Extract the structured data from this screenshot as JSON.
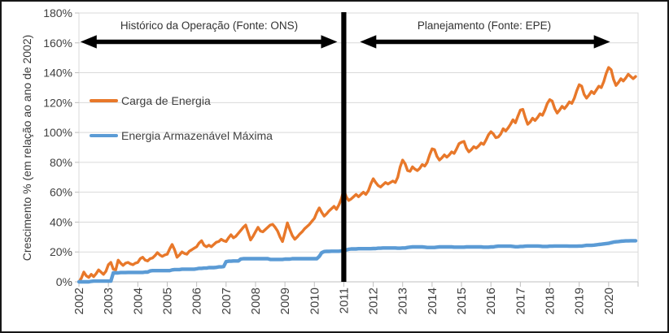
{
  "chart_data": {
    "type": "line",
    "title": "",
    "xlabel": "",
    "ylabel": "Crescimento % (em relação ao ano de 2002)",
    "x_unit": "monthly points from Jan 2002 to Dec 2020",
    "x_tick_labels": [
      "2002",
      "2003",
      "2004",
      "2005",
      "2006",
      "2007",
      "2008",
      "2009",
      "2010",
      "2011",
      "2012",
      "2013",
      "2014",
      "2015",
      "2016",
      "2017",
      "2018",
      "2019",
      "2020"
    ],
    "y_tick_labels": [
      "0%",
      "20%",
      "40%",
      "60%",
      "80%",
      "100%",
      "120%",
      "140%",
      "160%",
      "180%"
    ],
    "y_ticks_pct": [
      0,
      20,
      40,
      60,
      80,
      100,
      120,
      140,
      160,
      180
    ],
    "ylim": [
      0,
      180
    ],
    "xlim_years": [
      2002,
      2021
    ],
    "grid": "horizontal",
    "grid_color": "#d9d9d9",
    "axis_color": "#bfbfbf",
    "divider": {
      "x_year": 2011,
      "color": "#000000"
    },
    "annotations": [
      {
        "label": "Histórico da Operação (Fonte: ONS)",
        "arrow_span_years": [
          2002.05,
          2010.78
        ],
        "y_pct": 160
      },
      {
        "label": "Planejamento (Fonte: EPE)",
        "arrow_span_years": [
          2011.55,
          2020.05
        ],
        "y_pct": 160
      }
    ],
    "legend": [
      {
        "name": "Carga de Energia",
        "color": "#e8782a"
      },
      {
        "name": "Energia Armazenável Máxima",
        "color": "#5b9bd5"
      }
    ],
    "series": [
      {
        "name": "Carga de Energia",
        "color": "#e8782a",
        "width": 3.4,
        "values": [
          0,
          2.5,
          6.5,
          4,
          3,
          5,
          3.5,
          5.5,
          8,
          6.5,
          5,
          7,
          11.5,
          13,
          8.5,
          8,
          14.5,
          12.5,
          11,
          12.5,
          13,
          12,
          11.5,
          12.5,
          13,
          15.5,
          16.5,
          14.5,
          14,
          15.5,
          16,
          17.5,
          19.5,
          18,
          17,
          18,
          18.5,
          22,
          25,
          21.5,
          16.5,
          18,
          20,
          19,
          18.5,
          20.5,
          21.5,
          22.5,
          23.5,
          26,
          27.5,
          24.5,
          23.5,
          24.5,
          23.5,
          25,
          26.5,
          27,
          28.5,
          27.5,
          27,
          29.5,
          31.5,
          29.5,
          30.5,
          32.5,
          34.5,
          36.5,
          38,
          33,
          28,
          30.5,
          33.5,
          36.5,
          34,
          33.5,
          35,
          36.5,
          38,
          38.5,
          36.5,
          34,
          30,
          27,
          33,
          39.5,
          35,
          31,
          28.5,
          30,
          32,
          33.5,
          35.5,
          37,
          38.5,
          40.5,
          42.5,
          46.5,
          49.5,
          46.5,
          44,
          45.5,
          47.5,
          49,
          50.5,
          48.5,
          51.5,
          55.5,
          61.5,
          57,
          54.5,
          55.5,
          57,
          58.5,
          57,
          58.5,
          60,
          58.5,
          61,
          65.5,
          69,
          66.5,
          64.5,
          63.5,
          65,
          66.5,
          65.5,
          66.5,
          67.5,
          66.5,
          70,
          77,
          81.5,
          79,
          74.5,
          74,
          77,
          75.5,
          74.5,
          76,
          78.5,
          77.5,
          80,
          85,
          89,
          88.5,
          84,
          81.5,
          83,
          85,
          83.5,
          85,
          87,
          86,
          89,
          92.5,
          93.5,
          94,
          89.5,
          87,
          88.5,
          90.5,
          89.5,
          91,
          93,
          92,
          95,
          98.5,
          100.5,
          99,
          96.5,
          97,
          99,
          102.5,
          101,
          103,
          105.5,
          108.5,
          106.5,
          111,
          115,
          115.5,
          110,
          105.5,
          107,
          109.5,
          108,
          110,
          112.5,
          111.5,
          115,
          119.5,
          122,
          121,
          116,
          113,
          115,
          117.5,
          116,
          118,
          120.5,
          119.5,
          123,
          128,
          132,
          131,
          125.5,
          123,
          125,
          127.5,
          126,
          128.5,
          131,
          130,
          134,
          139.5,
          143.5,
          142,
          135.5,
          131.5,
          133.5,
          136,
          134.5,
          136.5,
          139,
          137.5,
          136,
          137.5
        ]
      },
      {
        "name": "Energia Armazenável Máxima",
        "color": "#5b9bd5",
        "width": 4.4,
        "values": [
          0,
          0,
          0,
          0,
          0,
          0.3,
          0.5,
          0.5,
          0.5,
          0.5,
          0.5,
          0.5,
          0.5,
          0.5,
          6,
          6,
          6,
          6.2,
          6.2,
          6.2,
          6.3,
          6.3,
          6.3,
          6.3,
          6.3,
          6.3,
          6.3,
          6.5,
          6.5,
          7.3,
          7.5,
          7.5,
          7.5,
          7.5,
          7.5,
          7.5,
          7.5,
          7.5,
          8,
          8.2,
          8.2,
          8.2,
          8.5,
          8.5,
          8.5,
          8.5,
          8.5,
          8.5,
          8.7,
          9,
          9,
          9.2,
          9.2,
          9.5,
          9.5,
          9.5,
          9.7,
          10,
          10,
          10.2,
          13.5,
          13.8,
          13.8,
          14,
          14,
          14,
          15.3,
          15.5,
          15.5,
          15.5,
          15.5,
          15.5,
          15.5,
          15.5,
          15.5,
          15.5,
          15.5,
          15.5,
          15,
          15,
          15,
          15,
          15,
          15,
          15.2,
          15.2,
          15.2,
          15.5,
          15.5,
          15.5,
          15.5,
          15.5,
          15.5,
          15.5,
          15.5,
          15.5,
          15.5,
          15.5,
          17,
          19.5,
          20.3,
          20.4,
          20.4,
          20.5,
          20.5,
          20.5,
          20.5,
          20.7,
          21,
          21.3,
          21.8,
          22,
          22,
          22,
          22.2,
          22.2,
          22.2,
          22.2,
          22.2,
          22.2,
          22.3,
          22.3,
          22.5,
          22.5,
          22.7,
          22.7,
          22.7,
          22.7,
          22.7,
          22.7,
          22.5,
          22.5,
          22.7,
          22.7,
          23,
          23.2,
          23.4,
          23.4,
          23.4,
          23.4,
          23.4,
          23.2,
          23,
          23,
          23,
          23,
          23.2,
          23.4,
          23.4,
          23.4,
          23.4,
          23.4,
          23.4,
          23.2,
          23.2,
          23.2,
          23.2,
          23.2,
          23.4,
          23.4,
          23.4,
          23.4,
          23.4,
          23.4,
          23.4,
          23.2,
          23.2,
          23.2,
          23.4,
          23.4,
          23.7,
          23.9,
          23.9,
          23.9,
          23.9,
          23.9,
          23.9,
          23.7,
          23.5,
          23.5,
          23.7,
          23.7,
          23.9,
          24,
          24,
          24,
          24,
          24,
          23.9,
          23.7,
          23.7,
          23.7,
          23.9,
          23.9,
          24,
          24,
          24,
          24,
          24,
          24,
          23.9,
          23.9,
          23.9,
          23.9,
          24,
          24,
          24.2,
          24.4,
          24.4,
          24.4,
          24.6,
          24.8,
          25,
          25.2,
          25.4,
          25.6,
          25.8,
          26.2,
          26.6,
          26.8,
          27,
          27.2,
          27.3,
          27.4,
          27.4,
          27.5,
          27.5,
          27.5
        ]
      }
    ]
  }
}
